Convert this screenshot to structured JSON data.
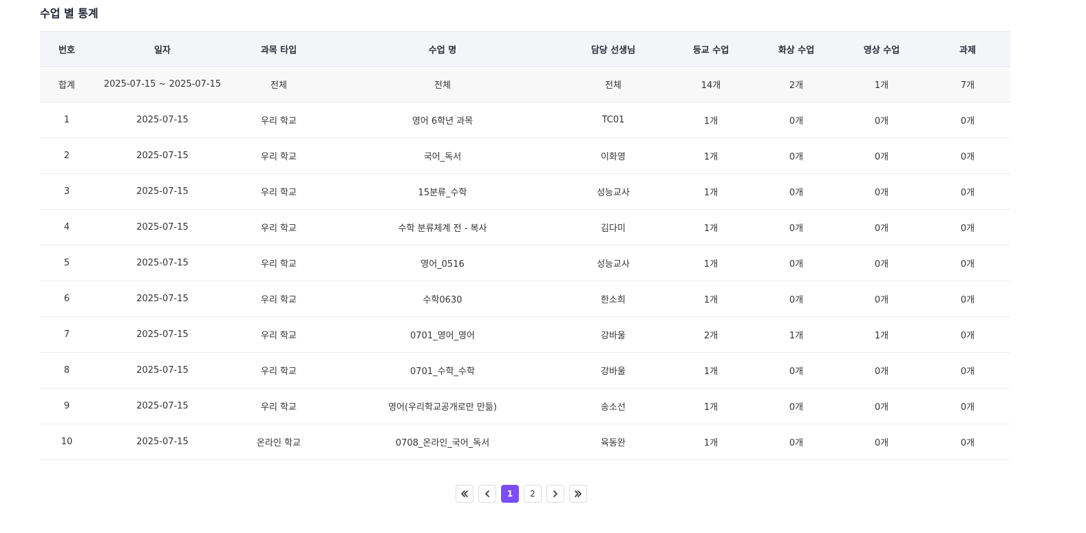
{
  "title": "수업 별 통계",
  "table": {
    "columns": [
      "번호",
      "일자",
      "과목 타입",
      "수업 명",
      "담당 선생님",
      "등교 수업",
      "화상 수업",
      "영상 수업",
      "과제"
    ],
    "summary": [
      "합계",
      "2025-07-15 ~ 2025-07-15",
      "전체",
      "전체",
      "전체",
      "14개",
      "2개",
      "1개",
      "7개"
    ],
    "rows": [
      [
        "1",
        "2025-07-15",
        "우리 학교",
        "영어 6학년 과목",
        "TC01",
        "1개",
        "0개",
        "0개",
        "0개"
      ],
      [
        "2",
        "2025-07-15",
        "우리 학교",
        "국어_독서",
        "이화영",
        "1개",
        "0개",
        "0개",
        "0개"
      ],
      [
        "3",
        "2025-07-15",
        "우리 학교",
        "15분류_수학",
        "성능교사",
        "1개",
        "0개",
        "0개",
        "0개"
      ],
      [
        "4",
        "2025-07-15",
        "우리 학교",
        "수학 분류체계 전 - 복사",
        "김다미",
        "1개",
        "0개",
        "0개",
        "0개"
      ],
      [
        "5",
        "2025-07-15",
        "우리 학교",
        "영어_0516",
        "성능교사",
        "1개",
        "0개",
        "0개",
        "0개"
      ],
      [
        "6",
        "2025-07-15",
        "우리 학교",
        "수학0630",
        "한소희",
        "1개",
        "0개",
        "0개",
        "0개"
      ],
      [
        "7",
        "2025-07-15",
        "우리 학교",
        "0701_영어_영어",
        "강바울",
        "2개",
        "1개",
        "1개",
        "0개"
      ],
      [
        "8",
        "2025-07-15",
        "우리 학교",
        "0701_수학_수학",
        "강바울",
        "1개",
        "0개",
        "0개",
        "0개"
      ],
      [
        "9",
        "2025-07-15",
        "우리 학교",
        "영어(우리학교공개로만 만듦)",
        "송소선",
        "1개",
        "0개",
        "0개",
        "0개"
      ],
      [
        "10",
        "2025-07-15",
        "온라인 학교",
        "0708_온라인_국어_독서",
        "육동완",
        "1개",
        "0개",
        "0개",
        "0개"
      ]
    ]
  },
  "pagination": {
    "pages": [
      "1",
      "2"
    ],
    "current": "1",
    "icons": {
      "first": "double-chevron-left-icon",
      "prev": "chevron-left-icon",
      "next": "chevron-right-icon",
      "last": "double-chevron-right-icon"
    }
  },
  "colors": {
    "accent": "#7c4dff",
    "header_bg": "#f4f5f8",
    "summary_bg": "#f8f8f9"
  }
}
